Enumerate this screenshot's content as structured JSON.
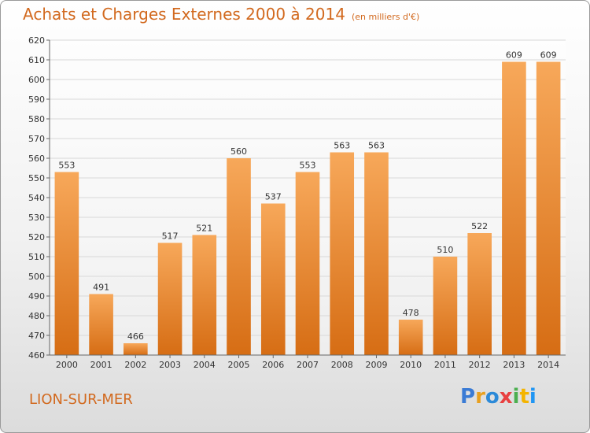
{
  "header": {
    "title": "Achats et Charges Externes 2000 à 2014",
    "unit": "(en milliers d'€)"
  },
  "footer": {
    "city": "LION-SUR-MER",
    "logo_letters": [
      "P",
      "r",
      "o",
      "x",
      "i",
      "t",
      "i"
    ]
  },
  "colors": {
    "accent": "#d2691e",
    "bar_light": "#f7a85a",
    "bar_dark": "#d66d14",
    "grid": "#d8d8d8"
  },
  "chart_data": {
    "type": "bar",
    "title": "Achats et Charges Externes 2000 à 2014",
    "subtitle": "(en milliers d'€)",
    "categories": [
      "2000",
      "2001",
      "2002",
      "2003",
      "2004",
      "2005",
      "2006",
      "2007",
      "2008",
      "2009",
      "2010",
      "2011",
      "2012",
      "2013",
      "2014"
    ],
    "values": [
      553,
      491,
      466,
      517,
      521,
      560,
      537,
      553,
      563,
      563,
      478,
      510,
      522,
      609,
      609
    ],
    "ylim": [
      460,
      620
    ],
    "yticks": [
      460,
      470,
      480,
      490,
      500,
      510,
      520,
      530,
      540,
      550,
      560,
      570,
      580,
      590,
      600,
      610,
      620
    ],
    "xlabel": "",
    "ylabel": "",
    "grid": true
  }
}
